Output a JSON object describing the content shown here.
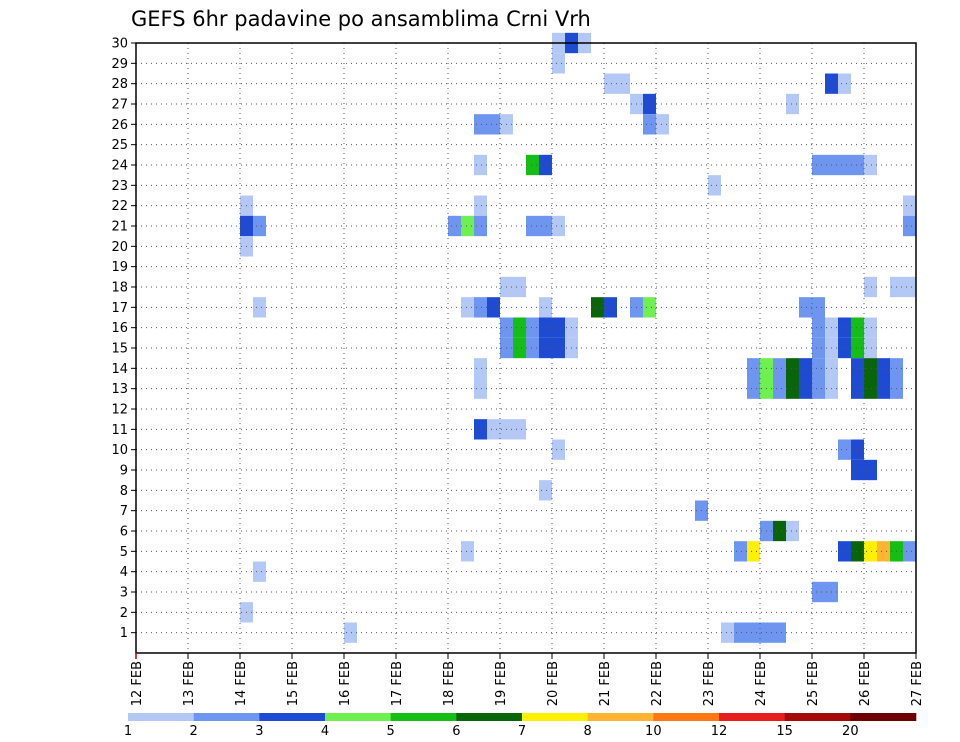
{
  "chart_data": {
    "type": "heatmap",
    "title": "GEFS 6hr padavine po ansamblima Crni Vrh",
    "x_ticks": [
      "12 FEB",
      "13 FEB",
      "14 FEB",
      "15 FEB",
      "16 FEB",
      "17 FEB",
      "18 FEB",
      "19 FEB",
      "20 FEB",
      "21 FEB",
      "22 FEB",
      "23 FEB",
      "24 FEB",
      "25 FEB",
      "26 FEB",
      "27 FEB"
    ],
    "xlim": [
      0,
      15
    ],
    "y_ticks": [
      1,
      2,
      3,
      4,
      5,
      6,
      7,
      8,
      9,
      10,
      11,
      12,
      13,
      14,
      15,
      16,
      17,
      18,
      19,
      20,
      21,
      22,
      23,
      24,
      25,
      26,
      27,
      28,
      29,
      30
    ],
    "ylim": [
      0,
      30
    ],
    "grid": true,
    "cells": [
      {
        "member": 30,
        "t": 8.0,
        "v": 1
      },
      {
        "member": 30,
        "t": 8.25,
        "v": 3
      },
      {
        "member": 30,
        "t": 8.5,
        "v": 1
      },
      {
        "member": 29,
        "t": 8.0,
        "v": 1
      },
      {
        "member": 28,
        "t": 9.0,
        "v": 1
      },
      {
        "member": 28,
        "t": 9.25,
        "v": 1
      },
      {
        "member": 28,
        "t": 13.25,
        "v": 3
      },
      {
        "member": 28,
        "t": 13.5,
        "v": 1
      },
      {
        "member": 27,
        "t": 9.5,
        "v": 1
      },
      {
        "member": 27,
        "t": 9.75,
        "v": 3
      },
      {
        "member": 27,
        "t": 12.5,
        "v": 1
      },
      {
        "member": 26,
        "t": 6.5,
        "v": 2
      },
      {
        "member": 26,
        "t": 6.75,
        "v": 2
      },
      {
        "member": 26,
        "t": 7.0,
        "v": 1
      },
      {
        "member": 26,
        "t": 9.75,
        "v": 2
      },
      {
        "member": 26,
        "t": 10.0,
        "v": 1
      },
      {
        "member": 24,
        "t": 6.5,
        "v": 1
      },
      {
        "member": 24,
        "t": 7.5,
        "v": 5
      },
      {
        "member": 24,
        "t": 7.75,
        "v": 3
      },
      {
        "member": 24,
        "t": 13.0,
        "v": 2
      },
      {
        "member": 24,
        "t": 13.25,
        "v": 2
      },
      {
        "member": 24,
        "t": 13.5,
        "v": 2
      },
      {
        "member": 24,
        "t": 13.75,
        "v": 2
      },
      {
        "member": 24,
        "t": 14.0,
        "v": 1
      },
      {
        "member": 23,
        "t": 11.0,
        "v": 1
      },
      {
        "member": 22,
        "t": 2.0,
        "v": 1
      },
      {
        "member": 22,
        "t": 6.5,
        "v": 1
      },
      {
        "member": 22,
        "t": 14.75,
        "v": 1
      },
      {
        "member": 21,
        "t": 2.0,
        "v": 3
      },
      {
        "member": 21,
        "t": 2.25,
        "v": 2
      },
      {
        "member": 21,
        "t": 6.0,
        "v": 2
      },
      {
        "member": 21,
        "t": 6.25,
        "v": 4
      },
      {
        "member": 21,
        "t": 6.5,
        "v": 2
      },
      {
        "member": 21,
        "t": 7.5,
        "v": 2
      },
      {
        "member": 21,
        "t": 7.75,
        "v": 2
      },
      {
        "member": 21,
        "t": 8.0,
        "v": 1
      },
      {
        "member": 21,
        "t": 14.75,
        "v": 2
      },
      {
        "member": 20,
        "t": 2.0,
        "v": 1
      },
      {
        "member": 18,
        "t": 7.0,
        "v": 1
      },
      {
        "member": 18,
        "t": 7.25,
        "v": 1
      },
      {
        "member": 18,
        "t": 14.0,
        "v": 1
      },
      {
        "member": 18,
        "t": 14.5,
        "v": 1
      },
      {
        "member": 18,
        "t": 14.75,
        "v": 1
      },
      {
        "member": 17,
        "t": 2.25,
        "v": 1
      },
      {
        "member": 17,
        "t": 6.25,
        "v": 1
      },
      {
        "member": 17,
        "t": 6.5,
        "v": 2
      },
      {
        "member": 17,
        "t": 6.75,
        "v": 3
      },
      {
        "member": 17,
        "t": 7.75,
        "v": 1
      },
      {
        "member": 17,
        "t": 8.75,
        "v": 6
      },
      {
        "member": 17,
        "t": 9.0,
        "v": 3
      },
      {
        "member": 17,
        "t": 9.5,
        "v": 2
      },
      {
        "member": 17,
        "t": 9.75,
        "v": 4
      },
      {
        "member": 17,
        "t": 12.75,
        "v": 2
      },
      {
        "member": 17,
        "t": 13.0,
        "v": 2
      },
      {
        "member": 16,
        "t": 7.0,
        "v": 2
      },
      {
        "member": 16,
        "t": 7.25,
        "v": 5
      },
      {
        "member": 16,
        "t": 7.5,
        "v": 2
      },
      {
        "member": 16,
        "t": 7.75,
        "v": 3
      },
      {
        "member": 16,
        "t": 8.0,
        "v": 3
      },
      {
        "member": 16,
        "t": 8.25,
        "v": 1
      },
      {
        "member": 16,
        "t": 13.0,
        "v": 2
      },
      {
        "member": 16,
        "t": 13.25,
        "v": 1
      },
      {
        "member": 16,
        "t": 13.5,
        "v": 3
      },
      {
        "member": 16,
        "t": 13.75,
        "v": 5
      },
      {
        "member": 16,
        "t": 14.0,
        "v": 1
      },
      {
        "member": 15,
        "t": 7.0,
        "v": 2
      },
      {
        "member": 15,
        "t": 7.25,
        "v": 5
      },
      {
        "member": 15,
        "t": 7.5,
        "v": 2
      },
      {
        "member": 15,
        "t": 7.75,
        "v": 3
      },
      {
        "member": 15,
        "t": 8.0,
        "v": 3
      },
      {
        "member": 15,
        "t": 8.25,
        "v": 1
      },
      {
        "member": 15,
        "t": 13.0,
        "v": 2
      },
      {
        "member": 15,
        "t": 13.25,
        "v": 1
      },
      {
        "member": 15,
        "t": 13.5,
        "v": 3
      },
      {
        "member": 15,
        "t": 13.75,
        "v": 5
      },
      {
        "member": 15,
        "t": 14.0,
        "v": 1
      },
      {
        "member": 14,
        "t": 6.5,
        "v": 1
      },
      {
        "member": 14,
        "t": 11.75,
        "v": 2
      },
      {
        "member": 14,
        "t": 12.0,
        "v": 4
      },
      {
        "member": 14,
        "t": 12.25,
        "v": 2
      },
      {
        "member": 14,
        "t": 12.5,
        "v": 6
      },
      {
        "member": 14,
        "t": 12.75,
        "v": 3
      },
      {
        "member": 14,
        "t": 13.0,
        "v": 2
      },
      {
        "member": 14,
        "t": 13.25,
        "v": 1
      },
      {
        "member": 14,
        "t": 13.75,
        "v": 3
      },
      {
        "member": 14,
        "t": 14.0,
        "v": 6
      },
      {
        "member": 14,
        "t": 14.25,
        "v": 3
      },
      {
        "member": 14,
        "t": 14.5,
        "v": 2
      },
      {
        "member": 13,
        "t": 6.5,
        "v": 1
      },
      {
        "member": 13,
        "t": 11.75,
        "v": 2
      },
      {
        "member": 13,
        "t": 12.0,
        "v": 4
      },
      {
        "member": 13,
        "t": 12.25,
        "v": 2
      },
      {
        "member": 13,
        "t": 12.5,
        "v": 6
      },
      {
        "member": 13,
        "t": 12.75,
        "v": 3
      },
      {
        "member": 13,
        "t": 13.0,
        "v": 2
      },
      {
        "member": 13,
        "t": 13.25,
        "v": 1
      },
      {
        "member": 13,
        "t": 13.75,
        "v": 3
      },
      {
        "member": 13,
        "t": 14.0,
        "v": 6
      },
      {
        "member": 13,
        "t": 14.25,
        "v": 3
      },
      {
        "member": 13,
        "t": 14.5,
        "v": 2
      },
      {
        "member": 11,
        "t": 6.5,
        "v": 3
      },
      {
        "member": 11,
        "t": 6.75,
        "v": 1
      },
      {
        "member": 11,
        "t": 7.0,
        "v": 1
      },
      {
        "member": 11,
        "t": 7.25,
        "v": 1
      },
      {
        "member": 10,
        "t": 8.0,
        "v": 1
      },
      {
        "member": 10,
        "t": 13.5,
        "v": 2
      },
      {
        "member": 10,
        "t": 13.75,
        "v": 3
      },
      {
        "member": 9,
        "t": 13.75,
        "v": 3
      },
      {
        "member": 9,
        "t": 14.0,
        "v": 3
      },
      {
        "member": 8,
        "t": 7.75,
        "v": 1
      },
      {
        "member": 7,
        "t": 10.75,
        "v": 2
      },
      {
        "member": 6,
        "t": 12.0,
        "v": 2
      },
      {
        "member": 6,
        "t": 12.25,
        "v": 6
      },
      {
        "member": 6,
        "t": 12.5,
        "v": 1
      },
      {
        "member": 5,
        "t": 6.25,
        "v": 1
      },
      {
        "member": 5,
        "t": 11.5,
        "v": 2
      },
      {
        "member": 5,
        "t": 11.75,
        "v": 7
      },
      {
        "member": 5,
        "t": 13.5,
        "v": 3
      },
      {
        "member": 5,
        "t": 13.75,
        "v": 6
      },
      {
        "member": 5,
        "t": 14.0,
        "v": 7
      },
      {
        "member": 5,
        "t": 14.25,
        "v": 8
      },
      {
        "member": 5,
        "t": 14.5,
        "v": 5
      },
      {
        "member": 5,
        "t": 14.75,
        "v": 2
      },
      {
        "member": 4,
        "t": 2.25,
        "v": 1
      },
      {
        "member": 3,
        "t": 13.0,
        "v": 2
      },
      {
        "member": 3,
        "t": 13.25,
        "v": 2
      },
      {
        "member": 2,
        "t": 2.0,
        "v": 1
      },
      {
        "member": 1,
        "t": 4.0,
        "v": 1
      },
      {
        "member": 1,
        "t": 11.25,
        "v": 1
      },
      {
        "member": 1,
        "t": 11.5,
        "v": 2
      },
      {
        "member": 1,
        "t": 11.75,
        "v": 2
      },
      {
        "member": 1,
        "t": 12.0,
        "v": 2
      },
      {
        "member": 1,
        "t": 12.25,
        "v": 2
      }
    ],
    "colorbar": {
      "colors": [
        "#b4c8f5",
        "#6e96f0",
        "#1e4bd2",
        "#6ef050",
        "#14be14",
        "#0a640a",
        "#fff000",
        "#ffb432",
        "#ff7814",
        "#e61e1e",
        "#a50a0a",
        "#6e0000"
      ],
      "labels": [
        "1",
        "2",
        "3",
        "4",
        "5",
        "6",
        "7",
        "8",
        "10",
        "12",
        "15",
        "20"
      ]
    }
  }
}
